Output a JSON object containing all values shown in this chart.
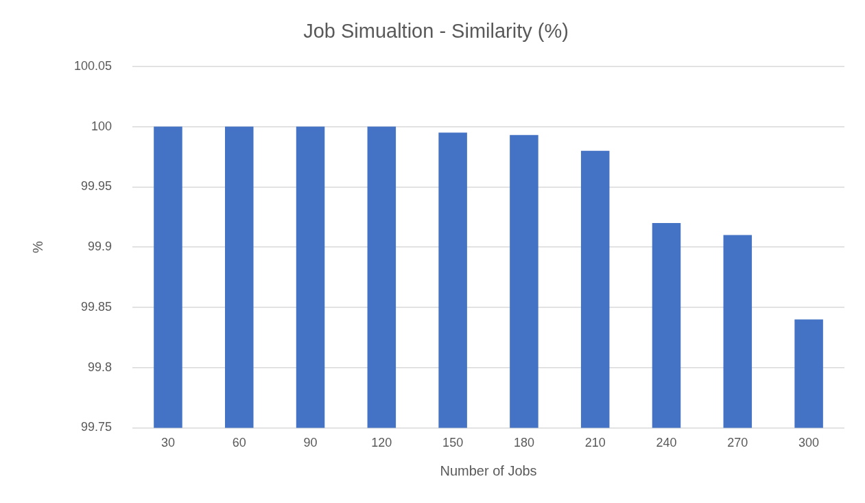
{
  "chart_data": {
    "type": "bar",
    "title": "Job Simualtion - Similarity (%)",
    "xlabel": "Number of Jobs",
    "ylabel": "%",
    "categories": [
      "30",
      "60",
      "90",
      "120",
      "150",
      "180",
      "210",
      "240",
      "270",
      "300"
    ],
    "values": [
      100,
      100,
      100,
      100,
      99.995,
      99.993,
      99.98,
      99.92,
      99.91,
      99.84
    ],
    "color": "#4472c4",
    "ylim": [
      99.75,
      100.05
    ],
    "yticks": [
      99.75,
      99.8,
      99.85,
      99.9,
      99.95,
      100,
      100.05
    ],
    "grid": "y",
    "legend": false
  }
}
